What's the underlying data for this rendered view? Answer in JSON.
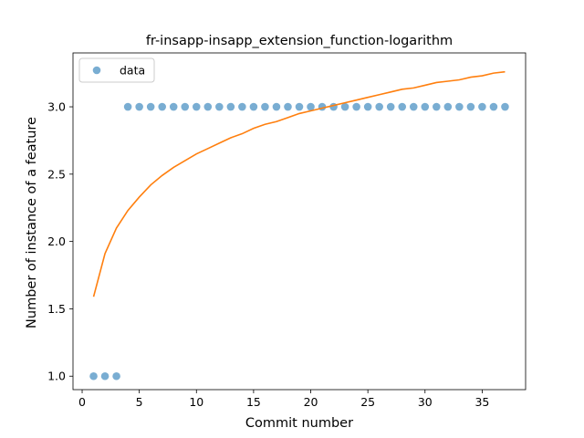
{
  "chart_data": {
    "type": "scatter",
    "title": "fr-insapp-insapp_extension_function-logarithm",
    "xlabel": "Commit number",
    "ylabel": "Number of instance of a feature",
    "xlim": [
      -0.8,
      38.8
    ],
    "ylim": [
      0.9,
      3.4
    ],
    "xticks": [
      0,
      5,
      10,
      15,
      20,
      25,
      30,
      35
    ],
    "yticks": [
      1.0,
      1.5,
      2.0,
      2.5,
      3.0
    ],
    "xtick_labels": [
      "0",
      "5",
      "10",
      "15",
      "20",
      "25",
      "30",
      "35"
    ],
    "ytick_labels": [
      "1.0",
      "1.5",
      "2.0",
      "2.5",
      "3.0"
    ],
    "grid": false,
    "legend_position": "top-left",
    "series": [
      {
        "name": "data",
        "kind": "scatter",
        "color": "#1f77b4",
        "x": [
          1,
          2,
          3,
          4,
          5,
          6,
          7,
          8,
          9,
          10,
          11,
          12,
          13,
          14,
          15,
          16,
          17,
          18,
          19,
          20,
          21,
          22,
          23,
          24,
          25,
          26,
          27,
          28,
          29,
          30,
          31,
          32,
          33,
          34,
          35,
          36,
          37
        ],
        "y": [
          1,
          1,
          1,
          3,
          3,
          3,
          3,
          3,
          3,
          3,
          3,
          3,
          3,
          3,
          3,
          3,
          3,
          3,
          3,
          3,
          3,
          3,
          3,
          3,
          3,
          3,
          3,
          3,
          3,
          3,
          3,
          3,
          3,
          3,
          3,
          3,
          3
        ]
      },
      {
        "kind": "line",
        "color": "#ff7f0e",
        "x": [
          1,
          2,
          3,
          4,
          5,
          6,
          7,
          8,
          9,
          10,
          11,
          12,
          13,
          14,
          15,
          16,
          17,
          18,
          19,
          20,
          21,
          22,
          23,
          24,
          25,
          26,
          27,
          28,
          29,
          30,
          31,
          32,
          33,
          34,
          35,
          36,
          37
        ],
        "y": [
          1.59,
          1.91,
          2.1,
          2.23,
          2.33,
          2.42,
          2.49,
          2.55,
          2.6,
          2.65,
          2.69,
          2.73,
          2.77,
          2.8,
          2.84,
          2.87,
          2.89,
          2.92,
          2.95,
          2.97,
          2.99,
          3.01,
          3.03,
          3.05,
          3.07,
          3.09,
          3.11,
          3.13,
          3.14,
          3.16,
          3.18,
          3.19,
          3.2,
          3.22,
          3.23,
          3.25,
          3.26
        ]
      }
    ]
  }
}
